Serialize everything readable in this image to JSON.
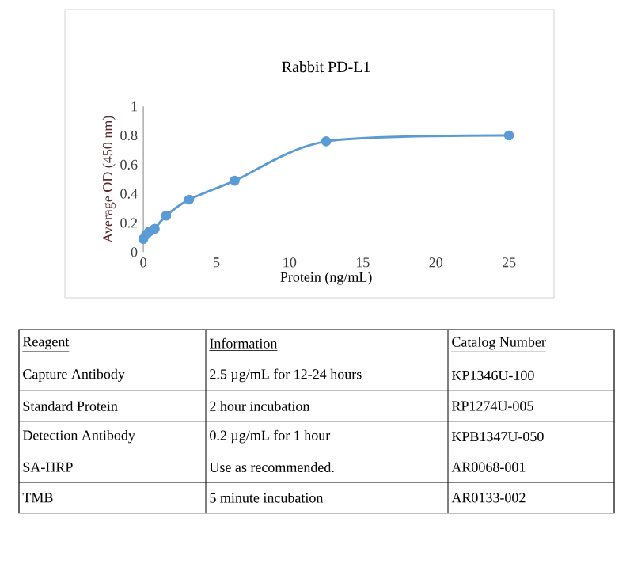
{
  "chart_data": {
    "type": "line",
    "title": "Rabbit PD-L1",
    "xlabel": "Protein (ng/mL)",
    "ylabel": "Average OD (450 nm)",
    "x": [
      0,
      0.195,
      0.39,
      0.78,
      1.56,
      3.125,
      6.25,
      12.5,
      25
    ],
    "series": [
      {
        "color": "#5b9bd5",
        "values": [
          0.09,
          0.12,
          0.14,
          0.16,
          0.25,
          0.36,
          0.49,
          0.76,
          0.8
        ]
      }
    ],
    "xlim": [
      0,
      25
    ],
    "ylim": [
      0,
      1
    ],
    "xticks": [
      0,
      5,
      10,
      15,
      20,
      25
    ],
    "yticks": [
      0,
      0.2,
      0.4,
      0.6,
      0.8,
      1
    ],
    "marker": "circle",
    "line_style": "solid",
    "grid": false,
    "annotations": [
      "Reagent",
      "Information",
      "Catalog Number",
      "Capture Antibody",
      "2.5 µg/mL for 12-24 hours",
      "KP1346U-100",
      "Standard Protein",
      "2 hour incubation",
      "RP1274U-005",
      "Detection Antibody",
      "0.2 µg/mL for 1 hour",
      "KPB1347U-050",
      "SA-HRP",
      "Use as recommended.",
      "AR0068-001",
      "TMB",
      "5 minute incubation",
      "AR0133-002"
    ]
  }
}
